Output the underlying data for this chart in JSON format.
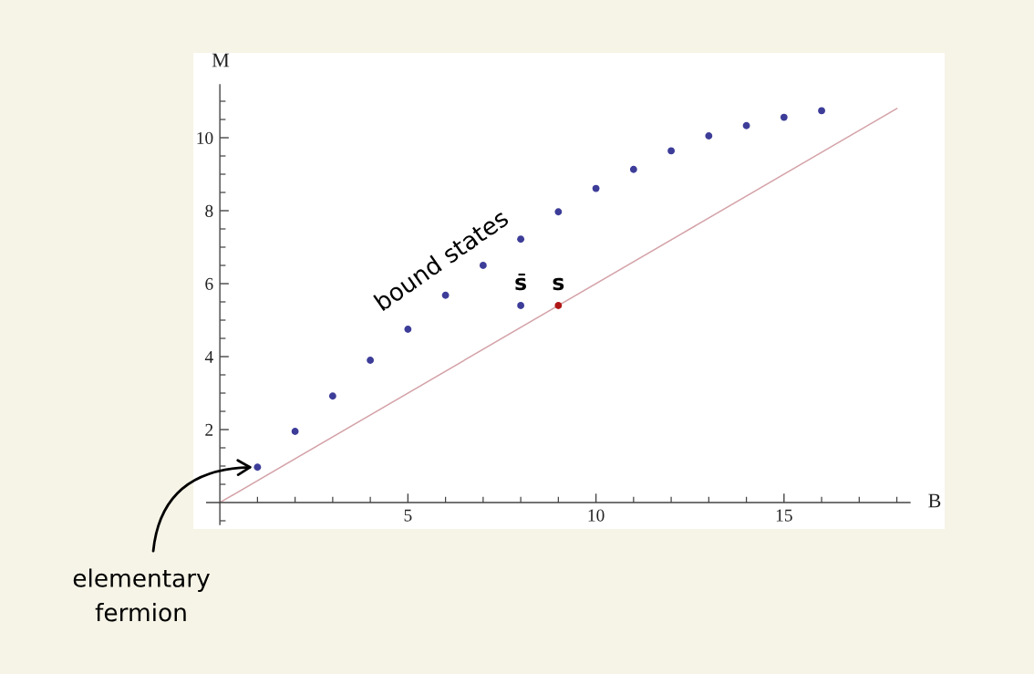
{
  "chart_data": {
    "type": "scatter",
    "xlabel": "B",
    "ylabel": "M",
    "series": [
      {
        "type": "line",
        "color": "#d4a2a8",
        "marker": "none",
        "x": [
          0,
          18
        ],
        "values": [
          0,
          10.8
        ]
      },
      {
        "color": "#3d3d99",
        "marker": "circle",
        "x": [
          1,
          2,
          3,
          4,
          5,
          6,
          7,
          8,
          9,
          10,
          11,
          12,
          13,
          14,
          15,
          16,
          8
        ],
        "values": [
          0.97,
          1.95,
          2.92,
          3.9,
          4.75,
          5.68,
          6.5,
          7.22,
          7.97,
          8.61,
          9.13,
          9.64,
          10.05,
          10.33,
          10.56,
          10.74,
          5.4
        ]
      },
      {
        "color": "#b01717",
        "marker": "circle",
        "x": [
          9
        ],
        "values": [
          5.4
        ]
      }
    ],
    "xlim": [
      -0.35,
      18.35
    ],
    "ylim": [
      -0.6,
      11.45
    ],
    "xticks": [
      {
        "value": 1,
        "label": null
      },
      {
        "value": 2,
        "label": null
      },
      {
        "value": 3,
        "label": null
      },
      {
        "value": 4,
        "label": null
      },
      5,
      {
        "value": 6,
        "label": null
      },
      {
        "value": 7,
        "label": null
      },
      {
        "value": 8,
        "label": null
      },
      {
        "value": 9,
        "label": null
      },
      10,
      {
        "value": 11,
        "label": null
      },
      {
        "value": 12,
        "label": null
      },
      {
        "value": 13,
        "label": null
      },
      {
        "value": 14,
        "label": null
      },
      15,
      {
        "value": 16,
        "label": null
      },
      {
        "value": 17,
        "label": null
      },
      {
        "value": 18,
        "label": null
      }
    ],
    "yticks": [
      {
        "value": -0.5,
        "label": null
      },
      {
        "value": 0.5,
        "label": null
      },
      {
        "value": 1,
        "label": null
      },
      {
        "value": 1.5,
        "label": null
      },
      2,
      {
        "value": 2.5,
        "label": null
      },
      {
        "value": 3,
        "label": null
      },
      {
        "value": 3.5,
        "label": null
      },
      4,
      {
        "value": 4.5,
        "label": null
      },
      {
        "value": 5,
        "label": null
      },
      {
        "value": 5.5,
        "label": null
      },
      6,
      {
        "value": 6.5,
        "label": null
      },
      {
        "value": 7,
        "label": null
      },
      {
        "value": 7.5,
        "label": null
      },
      8,
      {
        "value": 8.5,
        "label": null
      },
      {
        "value": 9,
        "label": null
      },
      {
        "value": 9.5,
        "label": null
      },
      10,
      {
        "value": 10.5,
        "label": null
      },
      {
        "value": 11,
        "label": null
      }
    ],
    "grid": false,
    "line_style": "solid",
    "annotations": [
      "bound states",
      {
        "text": "s̄",
        "x": 8,
        "y": 5.4
      },
      {
        "text": "s",
        "x": 9,
        "y": 5.4
      },
      {
        "text": "elementary\nfermion",
        "x": 1,
        "y": 0.97
      }
    ]
  }
}
